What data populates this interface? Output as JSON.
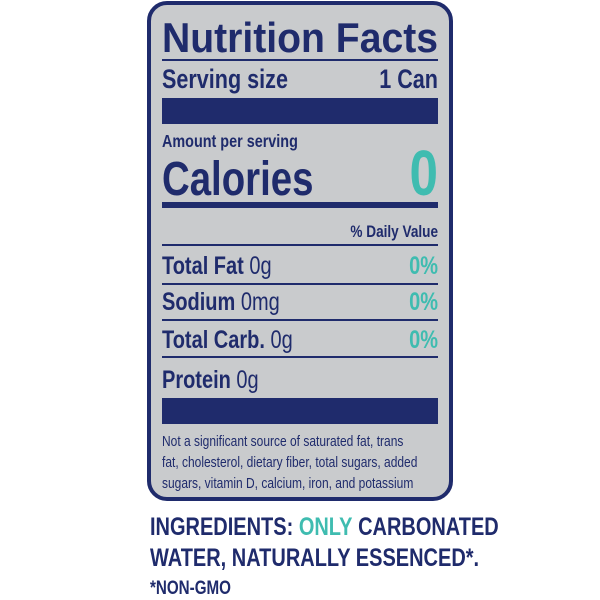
{
  "label": {
    "title": "Nutrition Facts",
    "serving": {
      "label": "Serving size",
      "value": "1 Can"
    },
    "amount_per_serving": "Amount per serving",
    "calories": {
      "label": "Calories",
      "value": "0"
    },
    "daily_value_header": "% Daily Value",
    "nutrients": [
      {
        "name": "Total Fat",
        "amount": "0g",
        "dv": "0%"
      },
      {
        "name": "Sodium",
        "amount": "0mg",
        "dv": "0%"
      },
      {
        "name": "Total Carb.",
        "amount": "0g",
        "dv": "0%"
      },
      {
        "name": "Protein",
        "amount": "0g"
      }
    ],
    "footnote": [
      "Not a significant source of saturated fat, trans",
      "fat, cholesterol, dietary fiber, total sugars, added",
      "sugars, vitamin D, calcium, iron, and potassium"
    ]
  },
  "ingredients": {
    "label": "INGREDIENTS:",
    "highlight": "ONLY",
    "line1_rest": "CARBONATED",
    "line2": "WATER, NATURALLY ESSENCED*.",
    "note": "*NON-GMO"
  }
}
